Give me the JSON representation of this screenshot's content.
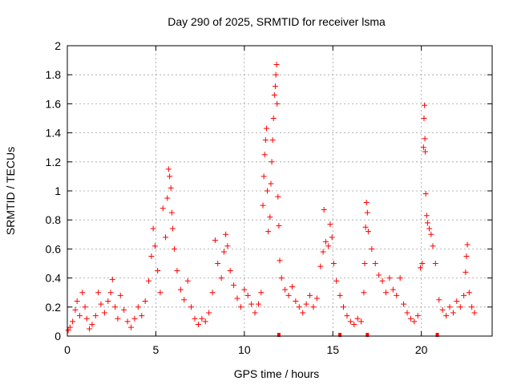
{
  "chart_data": {
    "type": "scatter",
    "title": "Day 290 of 2025, SRMTID for receiver lsma",
    "xlabel": "GPS time / hours",
    "ylabel": "SRMTID / TECUs",
    "xlim": [
      0,
      24
    ],
    "ylim": [
      0,
      2
    ],
    "xticks": [
      0,
      5,
      10,
      15,
      20
    ],
    "xtick_labels": [
      "0",
      "5",
      "10",
      "15",
      "20"
    ],
    "yticks": [
      0,
      0.2,
      0.4,
      0.6,
      0.8,
      1,
      1.2,
      1.4,
      1.6,
      1.8,
      2
    ],
    "ytick_labels": [
      "0",
      "0.2",
      "0.4",
      "0.6",
      "0.8",
      "1",
      "1.2",
      "1.4",
      "1.6",
      "1.8",
      "2"
    ],
    "grid": true,
    "marker": "+",
    "series_color": "#ff0000",
    "series": [
      {
        "name": "SRMTID",
        "points": [
          [
            0.05,
            0.04
          ],
          [
            0.15,
            0.06
          ],
          [
            0.3,
            0.1
          ],
          [
            0.45,
            0.18
          ],
          [
            0.55,
            0.24
          ],
          [
            0.7,
            0.14
          ],
          [
            0.85,
            0.3
          ],
          [
            1.0,
            0.2
          ],
          [
            1.1,
            0.12
          ],
          [
            1.25,
            0.05
          ],
          [
            1.4,
            0.08
          ],
          [
            1.6,
            0.14
          ],
          [
            1.75,
            0.3
          ],
          [
            1.9,
            0.22
          ],
          [
            2.1,
            0.16
          ],
          [
            2.3,
            0.24
          ],
          [
            2.45,
            0.3
          ],
          [
            2.55,
            0.39
          ],
          [
            2.7,
            0.2
          ],
          [
            2.85,
            0.12
          ],
          [
            3.0,
            0.28
          ],
          [
            3.2,
            0.18
          ],
          [
            3.4,
            0.1
          ],
          [
            3.6,
            0.06
          ],
          [
            3.8,
            0.12
          ],
          [
            4.0,
            0.2
          ],
          [
            4.2,
            0.14
          ],
          [
            4.4,
            0.24
          ],
          [
            4.6,
            0.38
          ],
          [
            4.75,
            0.55
          ],
          [
            4.85,
            0.74
          ],
          [
            4.95,
            0.62
          ],
          [
            5.1,
            0.45
          ],
          [
            5.25,
            0.3
          ],
          [
            5.4,
            0.88
          ],
          [
            5.55,
            0.68
          ],
          [
            5.65,
            0.95
          ],
          [
            5.72,
            1.15
          ],
          [
            5.78,
            1.1
          ],
          [
            5.85,
            1.02
          ],
          [
            5.9,
            0.85
          ],
          [
            5.95,
            0.74
          ],
          [
            6.05,
            0.6
          ],
          [
            6.2,
            0.45
          ],
          [
            6.4,
            0.32
          ],
          [
            6.6,
            0.25
          ],
          [
            6.8,
            0.38
          ],
          [
            7.0,
            0.2
          ],
          [
            7.2,
            0.12
          ],
          [
            7.4,
            0.08
          ],
          [
            7.6,
            0.12
          ],
          [
            7.8,
            0.1
          ],
          [
            8.0,
            0.16
          ],
          [
            8.2,
            0.3
          ],
          [
            8.35,
            0.66
          ],
          [
            8.5,
            0.5
          ],
          [
            8.7,
            0.4
          ],
          [
            8.85,
            0.58
          ],
          [
            8.95,
            0.7
          ],
          [
            9.05,
            0.62
          ],
          [
            9.2,
            0.45
          ],
          [
            9.4,
            0.35
          ],
          [
            9.6,
            0.26
          ],
          [
            9.8,
            0.2
          ],
          [
            10.0,
            0.32
          ],
          [
            10.2,
            0.28
          ],
          [
            10.4,
            0.22
          ],
          [
            10.6,
            0.16
          ],
          [
            10.8,
            0.22
          ],
          [
            10.95,
            0.3
          ],
          [
            11.05,
            0.9
          ],
          [
            11.1,
            1.1
          ],
          [
            11.15,
            1.25
          ],
          [
            11.2,
            1.35
          ],
          [
            11.25,
            1.43
          ],
          [
            11.3,
            1.0
          ],
          [
            11.35,
            0.72
          ],
          [
            11.45,
            0.82
          ],
          [
            11.5,
            1.05
          ],
          [
            11.55,
            1.2
          ],
          [
            11.6,
            1.35
          ],
          [
            11.65,
            1.5
          ],
          [
            11.7,
            1.66
          ],
          [
            11.75,
            1.72
          ],
          [
            11.78,
            1.8
          ],
          [
            11.82,
            1.87
          ],
          [
            11.85,
            1.6
          ],
          [
            11.9,
            0.96
          ],
          [
            11.95,
            0.76
          ],
          [
            12.0,
            0.52
          ],
          [
            12.1,
            0.4
          ],
          [
            12.3,
            0.32
          ],
          [
            12.5,
            0.28
          ],
          [
            12.7,
            0.34
          ],
          [
            12.9,
            0.24
          ],
          [
            13.1,
            0.2
          ],
          [
            13.3,
            0.16
          ],
          [
            13.5,
            0.22
          ],
          [
            13.7,
            0.28
          ],
          [
            13.9,
            0.2
          ],
          [
            14.1,
            0.26
          ],
          [
            14.3,
            0.48
          ],
          [
            14.45,
            0.58
          ],
          [
            14.5,
            0.87
          ],
          [
            14.6,
            0.65
          ],
          [
            14.75,
            0.62
          ],
          [
            14.85,
            0.77
          ],
          [
            14.95,
            0.68
          ],
          [
            15.05,
            0.5
          ],
          [
            15.2,
            0.38
          ],
          [
            15.4,
            0.28
          ],
          [
            15.6,
            0.2
          ],
          [
            15.8,
            0.14
          ],
          [
            16.0,
            0.1
          ],
          [
            16.2,
            0.08
          ],
          [
            16.4,
            0.12
          ],
          [
            16.6,
            0.1
          ],
          [
            16.75,
            0.3
          ],
          [
            16.8,
            0.5
          ],
          [
            16.85,
            0.75
          ],
          [
            16.9,
            0.92
          ],
          [
            16.95,
            0.85
          ],
          [
            17.0,
            0.72
          ],
          [
            17.2,
            0.6
          ],
          [
            17.4,
            0.5
          ],
          [
            17.6,
            0.42
          ],
          [
            17.8,
            0.38
          ],
          [
            18.0,
            0.3
          ],
          [
            18.2,
            0.4
          ],
          [
            18.4,
            0.32
          ],
          [
            18.6,
            0.28
          ],
          [
            18.8,
            0.4
          ],
          [
            19.0,
            0.22
          ],
          [
            19.2,
            0.16
          ],
          [
            19.4,
            0.12
          ],
          [
            19.6,
            0.1
          ],
          [
            19.8,
            0.14
          ],
          [
            19.95,
            0.47
          ],
          [
            20.05,
            0.5
          ],
          [
            20.12,
            1.3
          ],
          [
            20.15,
            1.5
          ],
          [
            20.18,
            1.59
          ],
          [
            20.2,
            1.36
          ],
          [
            20.22,
            1.27
          ],
          [
            20.25,
            0.98
          ],
          [
            20.3,
            0.83
          ],
          [
            20.35,
            0.78
          ],
          [
            20.45,
            0.74
          ],
          [
            20.55,
            0.7
          ],
          [
            20.65,
            0.62
          ],
          [
            20.8,
            0.5
          ],
          [
            21.0,
            0.25
          ],
          [
            21.2,
            0.18
          ],
          [
            21.4,
            0.14
          ],
          [
            21.6,
            0.2
          ],
          [
            21.8,
            0.16
          ],
          [
            22.0,
            0.24
          ],
          [
            22.2,
            0.2
          ],
          [
            22.4,
            0.28
          ],
          [
            22.5,
            0.44
          ],
          [
            22.55,
            0.55
          ],
          [
            22.6,
            0.63
          ],
          [
            22.7,
            0.3
          ],
          [
            22.85,
            0.2
          ],
          [
            23.0,
            0.16
          ]
        ]
      }
    ],
    "bottom_markers_x": [
      11.95,
      15.4,
      16.95,
      20.9
    ]
  }
}
